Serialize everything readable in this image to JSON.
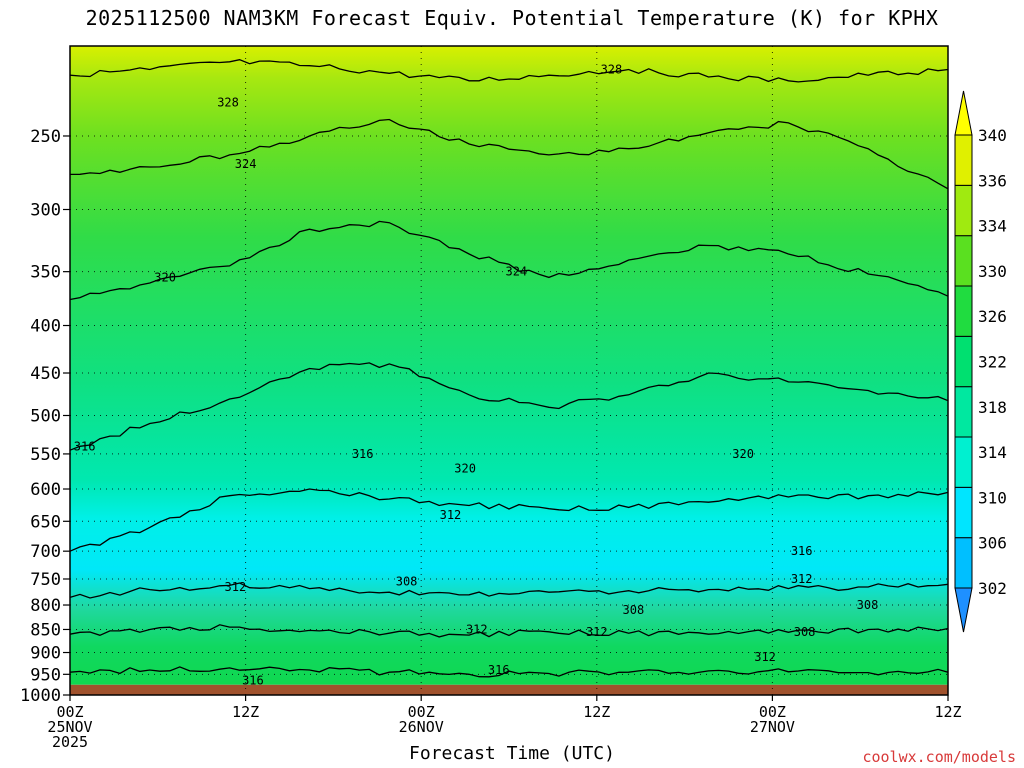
{
  "title": "2025112500 NAM3KM Forecast Equiv. Potential Temperature (K) for KPHX",
  "credit": "coolwx.com/models",
  "chart_data": {
    "type": "heatmap",
    "title": "2025112500 NAM3KM Forecast Equiv. Potential Temperature (K) for KPHX",
    "xlabel": "Forecast Time (UTC)",
    "ylabel": "",
    "y_axis": {
      "scale": "log-pressure",
      "range": [
        200,
        1000
      ],
      "ticks": [
        "250",
        "300",
        "350",
        "400",
        "450",
        "500",
        "550",
        "600",
        "650",
        "700",
        "750",
        "800",
        "850",
        "900",
        "950",
        "1000"
      ]
    },
    "x_axis": {
      "range_hours": [
        0,
        60
      ],
      "ticks": [
        {
          "hour": 0,
          "lines": [
            "00Z",
            "25NOV",
            "2025"
          ]
        },
        {
          "hour": 12,
          "lines": [
            "12Z"
          ]
        },
        {
          "hour": 24,
          "lines": [
            "00Z",
            "26NOV"
          ]
        },
        {
          "hour": 36,
          "lines": [
            "12Z"
          ]
        },
        {
          "hour": 48,
          "lines": [
            "00Z",
            "27NOV"
          ]
        },
        {
          "hour": 60,
          "lines": [
            "12Z"
          ]
        }
      ]
    },
    "grid": true,
    "surface_pressure": 975,
    "colorbar": {
      "placement": "right",
      "levels": [
        "302",
        "306",
        "310",
        "314",
        "318",
        "322",
        "326",
        "330",
        "334",
        "336",
        "340"
      ],
      "colors": [
        "#1e90ff",
        "#00bfff",
        "#00e5ff",
        "#00f0d0",
        "#00e8a0",
        "#00e070",
        "#20dc40",
        "#5ae020",
        "#a0ea10",
        "#e0f000",
        "#ffff00"
      ]
    },
    "contour_levels": [
      {
        "value": 328,
        "pressures": [
          215,
          212,
          208,
          210,
          214,
          218,
          215,
          212,
          216,
          218,
          215,
          212
        ]
      },
      {
        "value": 324,
        "pressures": [
          275,
          270,
          262,
          250,
          240,
          255,
          262,
          258,
          248,
          242,
          258,
          285
        ]
      },
      {
        "value": 320,
        "pressures": [
          375,
          360,
          345,
          315,
          310,
          335,
          355,
          340,
          328,
          335,
          352,
          372
        ]
      },
      {
        "value": 316,
        "pressures": [
          545,
          510,
          480,
          445,
          440,
          475,
          490,
          475,
          450,
          460,
          470,
          482
        ]
      },
      {
        "value": 312,
        "pressures": [
          700,
          660,
          610,
          600,
          615,
          625,
          630,
          628,
          620,
          612,
          610,
          605
        ]
      },
      {
        "value": 308,
        "pressures": [
          785,
          770,
          762,
          768,
          775,
          780,
          775,
          772,
          770,
          768,
          765,
          760
        ]
      },
      {
        "value": 312,
        "pressures": [
          860,
          850,
          845,
          852,
          858,
          862,
          855,
          858,
          860,
          856,
          850,
          848
        ]
      },
      {
        "value": 316,
        "pressures": [
          945,
          940,
          935,
          940,
          945,
          950,
          948,
          945,
          942,
          944,
          946,
          945
        ]
      }
    ],
    "contour_labels": [
      {
        "text": "328",
        "hour": 37,
        "pressure": 212
      },
      {
        "text": "328",
        "hour": 10.8,
        "pressure": 230
      },
      {
        "text": "324",
        "hour": 12,
        "pressure": 268
      },
      {
        "text": "324",
        "hour": 30.5,
        "pressure": 350
      },
      {
        "text": "320",
        "hour": 6.5,
        "pressure": 355
      },
      {
        "text": "320",
        "hour": 27,
        "pressure": 570
      },
      {
        "text": "320",
        "hour": 46,
        "pressure": 550
      },
      {
        "text": "316",
        "hour": 1,
        "pressure": 540
      },
      {
        "text": "316",
        "hour": 20,
        "pressure": 550
      },
      {
        "text": "316",
        "hour": 50,
        "pressure": 700
      },
      {
        "text": "316",
        "hour": 29.3,
        "pressure": 940
      },
      {
        "text": "316",
        "hour": 12.5,
        "pressure": 965
      },
      {
        "text": "312",
        "hour": 26,
        "pressure": 640
      },
      {
        "text": "312",
        "hour": 50,
        "pressure": 750
      },
      {
        "text": "312",
        "hour": 11.3,
        "pressure": 765
      },
      {
        "text": "312",
        "hour": 27.8,
        "pressure": 850
      },
      {
        "text": "312",
        "hour": 36,
        "pressure": 855
      },
      {
        "text": "312",
        "hour": 47.5,
        "pressure": 910
      },
      {
        "text": "308",
        "hour": 23,
        "pressure": 755
      },
      {
        "text": "308",
        "hour": 38.5,
        "pressure": 810
      },
      {
        "text": "308",
        "hour": 54.5,
        "pressure": 800
      },
      {
        "text": "308",
        "hour": 50.2,
        "pressure": 855
      }
    ]
  }
}
